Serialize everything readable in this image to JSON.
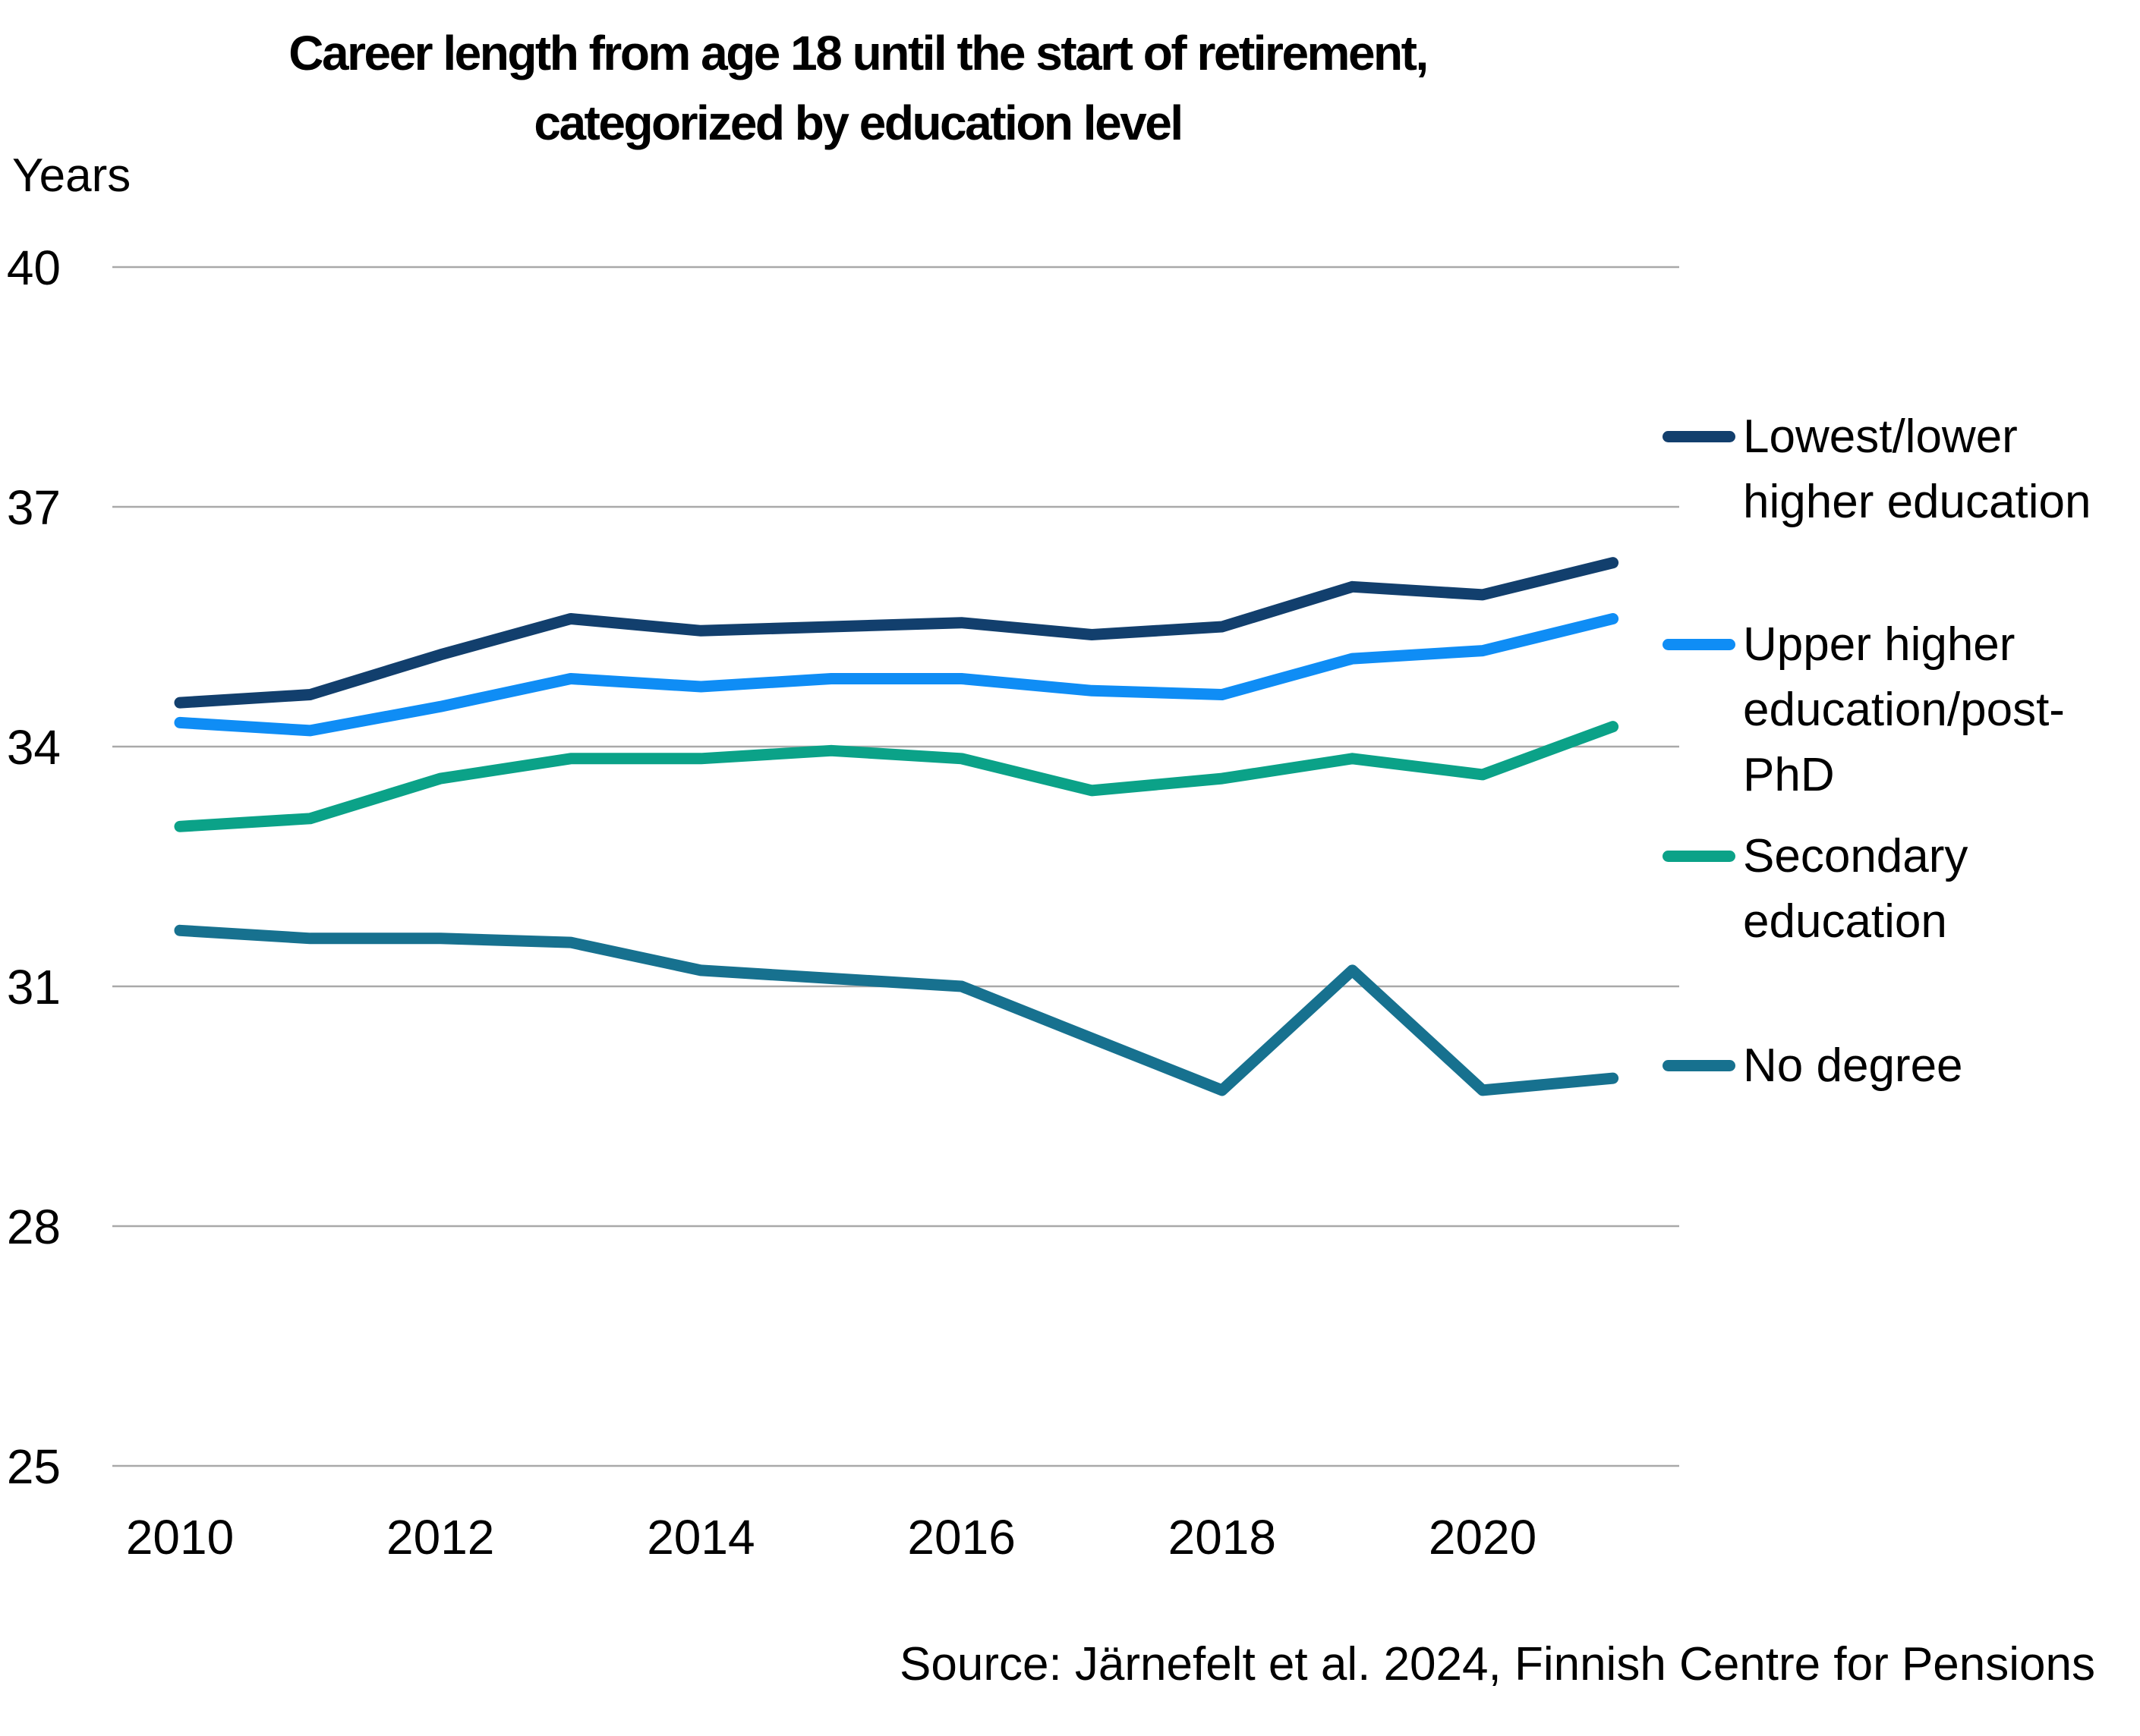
{
  "chart_data": {
    "type": "line",
    "title": "Career length from age 18 until the start of retirement,\ncategorized by education level",
    "y_axis": {
      "label": "Years",
      "ticks": [
        40,
        37,
        34,
        31,
        28,
        25
      ],
      "min": 25,
      "max": 40
    },
    "x_axis": {
      "ticks": [
        2010,
        2012,
        2014,
        2016,
        2018,
        2020
      ]
    },
    "years": [
      2010,
      2011,
      2012,
      2013,
      2014,
      2015,
      2016,
      2017,
      2018,
      2019,
      2020,
      2021
    ],
    "series": [
      {
        "name": "Lowest/lower higher education",
        "legend_label": "Lowest/lower\nhigher education",
        "color": "#123f6d",
        "values": [
          34.55,
          34.65,
          35.15,
          35.6,
          35.45,
          35.5,
          35.55,
          35.4,
          35.5,
          36.0,
          35.9,
          36.3
        ]
      },
      {
        "name": "Upper higher education/post-PhD",
        "legend_label": "Upper higher\neducation/post-\nPhD",
        "color": "#0f8df5",
        "values": [
          34.3,
          34.2,
          34.5,
          34.85,
          34.75,
          34.85,
          34.85,
          34.7,
          34.65,
          35.1,
          35.2,
          35.6
        ]
      },
      {
        "name": "Secondary education",
        "legend_label": "Secondary\neducation",
        "color": "#0ba288",
        "values": [
          33.0,
          33.1,
          33.6,
          33.85,
          33.85,
          33.95,
          33.85,
          33.45,
          33.6,
          33.85,
          33.65,
          34.25
        ]
      },
      {
        "name": "No degree",
        "legend_label": "No degree",
        "color": "#17718f",
        "values": [
          31.7,
          31.6,
          31.6,
          31.55,
          31.2,
          31.1,
          31.0,
          30.35,
          29.7,
          31.2,
          29.7,
          29.85
        ]
      }
    ],
    "grid": true,
    "legend_position": "right",
    "source": "Source: Järnefelt et al. 2024, Finnish Centre for Pensions"
  },
  "colors": {
    "gridline": "#a9a9a9",
    "text": "#000000",
    "background": "#ffffff"
  }
}
